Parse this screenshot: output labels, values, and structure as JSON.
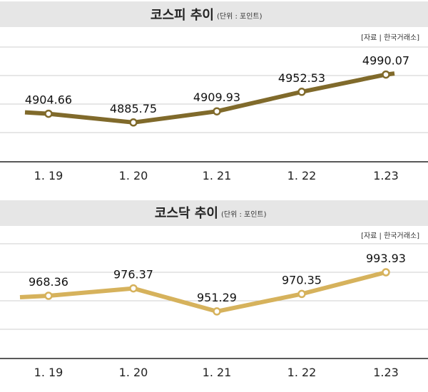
{
  "charts": [
    {
      "title": "코스피 추이",
      "unit": "(단위 : 포인트)",
      "source": "[자료 | 한국거래소]",
      "line_color": "#806a2b",
      "band_color": "#e6e6e6"
    },
    {
      "title": "코스닥 추이",
      "unit": "(단위 : 포인트)",
      "source": "[자료 | 한국거래소]",
      "line_color": "#d6b25c",
      "band_color": "#e6e6e6"
    }
  ],
  "chart_data": [
    {
      "type": "line",
      "title": "코스피 추이",
      "categories": [
        "1. 19",
        "1. 20",
        "1. 21",
        "1. 22",
        "1.23"
      ],
      "values": [
        4904.66,
        4885.75,
        4909.93,
        4952.53,
        4990.07
      ],
      "value_labels": [
        "4904.66",
        "4885.75",
        "4909.93",
        "4952.53",
        "4990.07"
      ],
      "ylim": [
        4800,
        5050
      ],
      "grid": true
    },
    {
      "type": "line",
      "title": "코스닥 추이",
      "categories": [
        "1. 19",
        "1. 20",
        "1. 21",
        "1. 22",
        "1.23"
      ],
      "values": [
        968.36,
        976.37,
        951.29,
        970.35,
        993.93
      ],
      "value_labels": [
        "968.36",
        "976.37",
        "951.29",
        "970.35",
        "993.93"
      ],
      "ylim": [
        900,
        1025
      ],
      "grid": true
    }
  ]
}
